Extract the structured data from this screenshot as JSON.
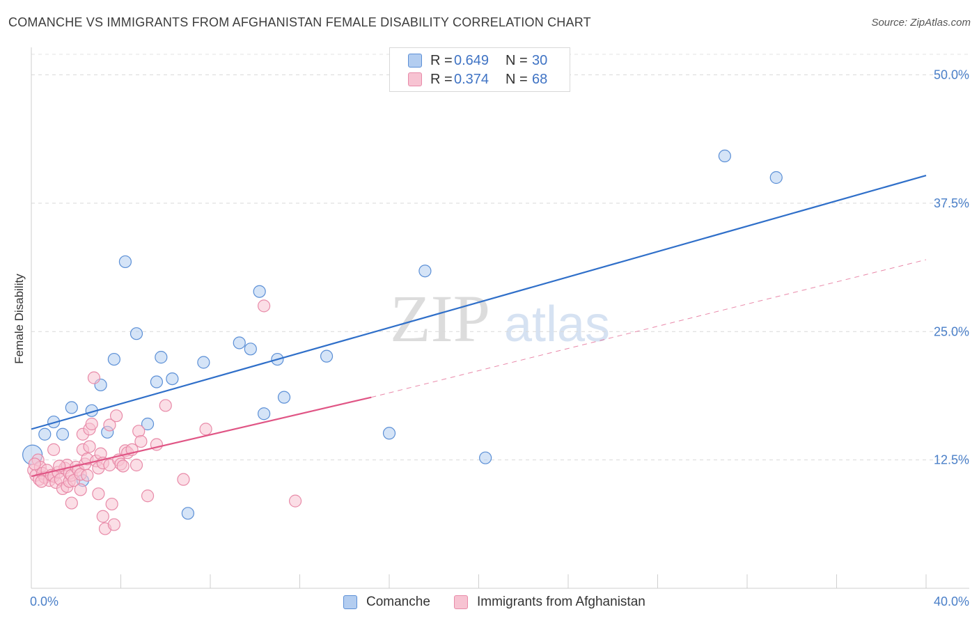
{
  "chart_data": {
    "type": "scatter",
    "title": "COMANCHE VS IMMIGRANTS FROM AFGHANISTAN FEMALE DISABILITY CORRELATION CHART",
    "source": "Source: ZipAtlas.com",
    "xlabel": "",
    "ylabel": "Female Disability",
    "xlim": [
      0,
      40
    ],
    "ylim": [
      0,
      52
    ],
    "x_tick_labels": [
      "0.0%",
      "40.0%"
    ],
    "y_ticks": [
      12.5,
      25.0,
      37.5,
      50.0
    ],
    "y_tick_labels": [
      "12.5%",
      "25.0%",
      "37.5%",
      "50.0%"
    ],
    "grid": "horizontal dashed",
    "watermark": "ZIPatlas",
    "legend": [
      "Comanche",
      "Immigrants from Afghanistan"
    ],
    "stats": [
      {
        "r_label": "R =",
        "r": "0.649",
        "n_label": "N =",
        "n": "30"
      },
      {
        "r_label": "R =",
        "r": "0.374",
        "n_label": "N =",
        "n": "68"
      }
    ],
    "series": [
      {
        "name": "Comanche",
        "color": "#5b8fd6",
        "fill": "#b3cdf0",
        "line_color": "#2f6fc9",
        "trend": {
          "x0": 0,
          "y0": 15.5,
          "x1": 40,
          "y1": 40.2,
          "style": "solid"
        },
        "points": [
          [
            0.05,
            13.0
          ],
          [
            0.6,
            15.0
          ],
          [
            1.0,
            16.2
          ],
          [
            1.4,
            15.0
          ],
          [
            1.8,
            17.6
          ],
          [
            2.3,
            10.5
          ],
          [
            2.7,
            17.3
          ],
          [
            3.1,
            19.8
          ],
          [
            3.4,
            15.2
          ],
          [
            3.7,
            22.3
          ],
          [
            4.2,
            31.8
          ],
          [
            4.7,
            24.8
          ],
          [
            5.2,
            16.0
          ],
          [
            5.6,
            20.1
          ],
          [
            5.8,
            22.5
          ],
          [
            6.3,
            20.4
          ],
          [
            7.0,
            7.3
          ],
          [
            7.7,
            22.0
          ],
          [
            9.3,
            23.9
          ],
          [
            9.8,
            23.3
          ],
          [
            10.2,
            28.9
          ],
          [
            10.4,
            17.0
          ],
          [
            11.0,
            22.3
          ],
          [
            11.3,
            18.6
          ],
          [
            13.2,
            22.6
          ],
          [
            16.0,
            15.1
          ],
          [
            17.6,
            30.9
          ],
          [
            20.3,
            12.7
          ],
          [
            31.0,
            42.1
          ],
          [
            33.3,
            40.0
          ]
        ]
      },
      {
        "name": "Immigrants from Afghanistan",
        "color": "#e88aa8",
        "fill": "#f7c3d2",
        "line_color": "#e05585",
        "trend": {
          "x0": 0,
          "y0": 10.9,
          "x1": 15.2,
          "y1": 18.6,
          "style": "solid",
          "extension": {
            "x1": 40,
            "y1": 32.0,
            "style": "dashed"
          }
        },
        "points": [
          [
            0.1,
            11.5
          ],
          [
            0.2,
            11.0
          ],
          [
            0.3,
            12.5
          ],
          [
            0.35,
            10.6
          ],
          [
            0.4,
            11.8
          ],
          [
            0.5,
            11.2
          ],
          [
            0.6,
            10.8
          ],
          [
            0.7,
            11.5
          ],
          [
            0.8,
            10.5
          ],
          [
            0.9,
            11.0
          ],
          [
            1.0,
            10.9
          ],
          [
            1.1,
            10.3
          ],
          [
            1.0,
            13.5
          ],
          [
            1.2,
            11.3
          ],
          [
            1.3,
            10.6
          ],
          [
            1.4,
            9.7
          ],
          [
            1.5,
            11.7
          ],
          [
            1.6,
            12.0
          ],
          [
            1.6,
            9.9
          ],
          [
            1.7,
            10.4
          ],
          [
            1.7,
            11.2
          ],
          [
            1.8,
            11.0
          ],
          [
            1.8,
            8.3
          ],
          [
            1.9,
            10.5
          ],
          [
            2.0,
            11.8
          ],
          [
            2.1,
            11.5
          ],
          [
            2.2,
            11.1
          ],
          [
            2.2,
            9.6
          ],
          [
            2.3,
            13.5
          ],
          [
            2.3,
            15.0
          ],
          [
            2.4,
            12.1
          ],
          [
            2.5,
            12.6
          ],
          [
            2.5,
            11.0
          ],
          [
            2.6,
            13.8
          ],
          [
            2.6,
            15.5
          ],
          [
            2.7,
            16.0
          ],
          [
            2.8,
            20.5
          ],
          [
            2.9,
            12.4
          ],
          [
            3.0,
            11.7
          ],
          [
            3.0,
            9.2
          ],
          [
            3.1,
            13.1
          ],
          [
            3.2,
            7.0
          ],
          [
            3.2,
            12.2
          ],
          [
            3.3,
            5.8
          ],
          [
            3.5,
            12.0
          ],
          [
            3.5,
            15.9
          ],
          [
            3.6,
            8.2
          ],
          [
            3.7,
            6.2
          ],
          [
            3.8,
            16.8
          ],
          [
            3.9,
            12.5
          ],
          [
            4.0,
            12.1
          ],
          [
            4.1,
            11.9
          ],
          [
            4.2,
            13.4
          ],
          [
            4.3,
            13.2
          ],
          [
            4.5,
            13.5
          ],
          [
            4.7,
            12.0
          ],
          [
            4.8,
            15.3
          ],
          [
            4.9,
            14.3
          ],
          [
            5.2,
            9.0
          ],
          [
            5.6,
            14.0
          ],
          [
            6.0,
            17.8
          ],
          [
            6.8,
            10.6
          ],
          [
            7.8,
            15.5
          ],
          [
            10.4,
            27.5
          ],
          [
            11.8,
            8.5
          ],
          [
            0.15,
            12.1
          ],
          [
            0.45,
            10.4
          ],
          [
            1.25,
            11.9
          ]
        ]
      }
    ]
  }
}
